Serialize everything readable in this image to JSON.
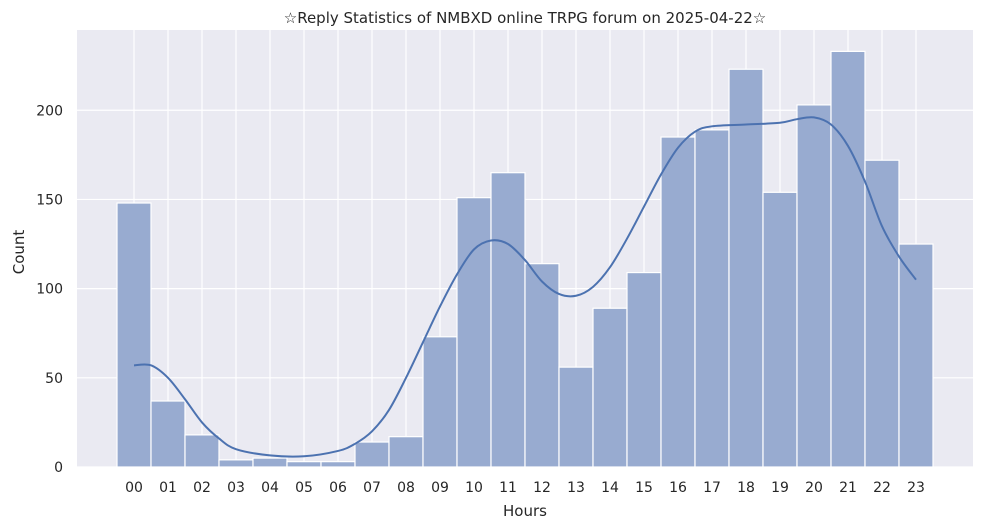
{
  "chart_data": {
    "type": "bar",
    "title": "☆Reply Statistics of NMBXD online TRPG forum on 2025-04-22☆",
    "xlabel": "Hours",
    "ylabel": "Count",
    "categories": [
      "00",
      "01",
      "02",
      "03",
      "04",
      "05",
      "06",
      "07",
      "08",
      "09",
      "10",
      "11",
      "12",
      "13",
      "14",
      "15",
      "16",
      "17",
      "18",
      "19",
      "20",
      "21",
      "22",
      "23"
    ],
    "values": [
      148,
      37,
      18,
      4,
      5,
      3,
      3,
      14,
      17,
      73,
      151,
      165,
      114,
      56,
      89,
      109,
      185,
      189,
      223,
      154,
      203,
      233,
      172,
      125
    ],
    "kde": [
      [
        0,
        57
      ],
      [
        0.5,
        57
      ],
      [
        1,
        50
      ],
      [
        1.5,
        38
      ],
      [
        2,
        25
      ],
      [
        2.5,
        16
      ],
      [
        3,
        10
      ],
      [
        4,
        6.5
      ],
      [
        5,
        6
      ],
      [
        6,
        9
      ],
      [
        6.5,
        13
      ],
      [
        7,
        20
      ],
      [
        7.5,
        32
      ],
      [
        8,
        50
      ],
      [
        8.5,
        70
      ],
      [
        9,
        90
      ],
      [
        9.5,
        108
      ],
      [
        10,
        122
      ],
      [
        10.5,
        127
      ],
      [
        11,
        125
      ],
      [
        11.5,
        116
      ],
      [
        12,
        104
      ],
      [
        12.5,
        97
      ],
      [
        13,
        96
      ],
      [
        13.5,
        101
      ],
      [
        14,
        112
      ],
      [
        14.5,
        128
      ],
      [
        15,
        146
      ],
      [
        15.5,
        164
      ],
      [
        16,
        179
      ],
      [
        16.5,
        188
      ],
      [
        17,
        191
      ],
      [
        18,
        192
      ],
      [
        19,
        193
      ],
      [
        19.5,
        195
      ],
      [
        20,
        196
      ],
      [
        20.5,
        192
      ],
      [
        21,
        180
      ],
      [
        21.5,
        160
      ],
      [
        22,
        135
      ],
      [
        22.5,
        118
      ],
      [
        23,
        105
      ]
    ],
    "ylim": [
      0,
      245
    ],
    "yticks": [
      0,
      50,
      100,
      150,
      200
    ],
    "grid": true,
    "bar_color": "#98abd0",
    "line_color": "#4c72b0",
    "background": "#eaeaf2"
  }
}
